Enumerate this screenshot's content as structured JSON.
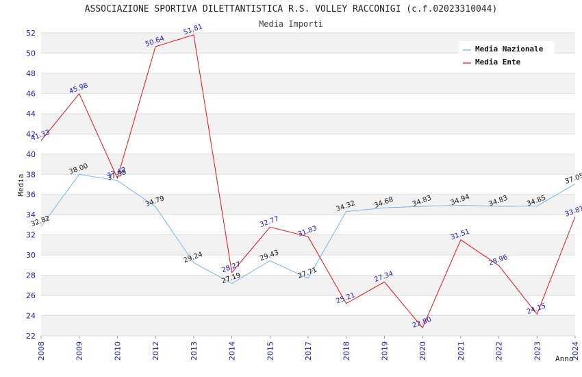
{
  "chart_data": {
    "type": "line",
    "title": "ASSOCIAZIONE SPORTIVA DILETTANTISTICA R.S. VOLLEY RACCONIGI (c.f.02023310044)",
    "subtitle": "Media Importi",
    "xlabel": "Anno",
    "ylabel": "Media",
    "ylim": [
      22,
      52
    ],
    "ytick_step": 2,
    "grid": true,
    "legend_position": "top-right",
    "categories": [
      "2008",
      "2009",
      "2010",
      "2012",
      "2013",
      "2014",
      "2015",
      "2017",
      "2018",
      "2019",
      "2020",
      "2021",
      "2022",
      "2023",
      "2024"
    ],
    "series": [
      {
        "name": "Media Nazionale",
        "color": "#6aaee8",
        "label_color": "#111111",
        "values": [
          32.82,
          38.0,
          37.38,
          34.79,
          29.24,
          27.19,
          29.43,
          27.71,
          34.32,
          34.68,
          34.83,
          34.94,
          34.83,
          34.85,
          37.05
        ]
      },
      {
        "name": "Media Ente",
        "color": "#e0101a",
        "label_color": "#1a1aa6",
        "values": [
          41.33,
          45.98,
          37.62,
          50.64,
          51.81,
          28.27,
          32.77,
          31.83,
          25.21,
          27.34,
          22.8,
          31.51,
          28.96,
          24.15,
          33.81
        ]
      }
    ]
  }
}
